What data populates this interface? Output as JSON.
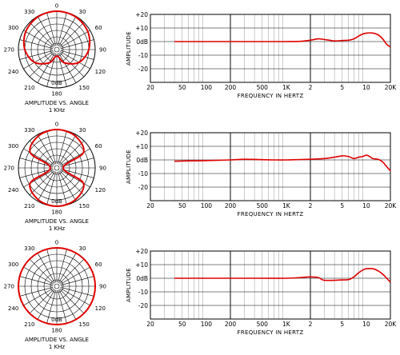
{
  "chart_data": [
    {
      "type": "polar",
      "panel": 1,
      "angle_labels": [
        "0",
        "30",
        "60",
        "90",
        "120",
        "150",
        "180",
        "210",
        "240",
        "270",
        "300",
        "330"
      ],
      "radial_label": "0dB",
      "caption_line1": "AMPLITUDE VS. ANGLE",
      "caption_line2": "1 KHz",
      "pattern": "cardioid",
      "response_db": {
        "0": 0,
        "30": -0.5,
        "60": -2,
        "90": -5,
        "120": -10,
        "150": -18,
        "180": -25,
        "210": -18,
        "240": -10,
        "270": -5,
        "300": -2,
        "330": -0.5
      }
    },
    {
      "type": "line",
      "panel": 1,
      "title": "",
      "xlabel": "FREQUENCY IN HERTZ",
      "ylabel": "AMPLITUDE",
      "x_scale": "log",
      "xlim": [
        20,
        20000
      ],
      "ylim": [
        -30,
        20
      ],
      "x_tick_labels": [
        "20",
        "50",
        "100",
        "200",
        "500",
        "1K",
        "2",
        "5",
        "10",
        "20K"
      ],
      "y_tick_labels": [
        "+20",
        "+10",
        "0dB",
        "-10",
        "-20"
      ],
      "series": [
        {
          "color": "#e00000",
          "x": [
            40,
            60,
            100,
            200,
            500,
            1000,
            1500,
            2000,
            2500,
            3000,
            4000,
            5000,
            6000,
            7000,
            8000,
            9000,
            10000,
            12000,
            14000,
            16000,
            18000,
            20000
          ],
          "y": [
            0,
            0,
            0,
            0,
            0,
            0,
            0.2,
            1,
            2,
            1.5,
            0.5,
            0.8,
            1,
            2,
            4,
            5.5,
            6.2,
            6.3,
            5,
            2,
            -2,
            -4
          ]
        }
      ]
    },
    {
      "type": "polar",
      "panel": 2,
      "angle_labels": [
        "0",
        "30",
        "60",
        "90",
        "120",
        "150",
        "180",
        "210",
        "240",
        "270",
        "300",
        "330"
      ],
      "radial_label": "0dB",
      "caption_line1": "AMPLITUDE VS. ANGLE",
      "caption_line2": "1 KHz",
      "pattern": "figure-8",
      "response_db": {
        "0": 0,
        "30": -1.2,
        "60": -6,
        "90": -25,
        "120": -6,
        "150": -1.2,
        "180": 0,
        "210": -1.2,
        "240": -6,
        "270": -25,
        "300": -6,
        "330": -1.2
      }
    },
    {
      "type": "line",
      "panel": 2,
      "title": "",
      "xlabel": "FREQUENCY IN HERTZ",
      "ylabel": "AMPLITUDE",
      "x_scale": "log",
      "xlim": [
        20,
        20000
      ],
      "ylim": [
        -30,
        20
      ],
      "x_tick_labels": [
        "20",
        "50",
        "100",
        "200",
        "500",
        "1K",
        "2",
        "5",
        "10",
        "20K"
      ],
      "y_tick_labels": [
        "+20",
        "+10",
        "0dB",
        "-10",
        "-20"
      ],
      "series": [
        {
          "color": "#e00000",
          "x": [
            40,
            60,
            100,
            200,
            300,
            500,
            700,
            1000,
            1500,
            2000,
            3000,
            4000,
            5000,
            6000,
            7000,
            8000,
            9000,
            10000,
            11000,
            12000,
            14000,
            16000,
            18000,
            20000
          ],
          "y": [
            -1,
            -0.7,
            -0.5,
            0,
            0.5,
            0.2,
            0,
            0,
            0.3,
            0.5,
            1,
            2,
            3,
            2.5,
            1,
            2,
            2.5,
            3.5,
            2.5,
            1,
            0.5,
            -1.5,
            -5,
            -8
          ]
        }
      ]
    },
    {
      "type": "polar",
      "panel": 3,
      "angle_labels": [
        "0",
        "30",
        "60",
        "90",
        "120",
        "150",
        "180",
        "210",
        "240",
        "270",
        "300",
        "330"
      ],
      "radial_label": "0dB",
      "caption_line1": "AMPLITUDE VS. ANGLE",
      "caption_line2": "1 KHz",
      "pattern": "omnidirectional",
      "response_db": {
        "0": 0,
        "30": 0,
        "60": 0,
        "90": 0,
        "120": 0,
        "150": 0,
        "180": 0,
        "210": 0,
        "240": 0,
        "270": 0,
        "300": 0,
        "330": 0
      }
    },
    {
      "type": "line",
      "panel": 3,
      "title": "",
      "xlabel": "FREQUENCY IN HERTZ",
      "ylabel": "AMPLITUDE",
      "x_scale": "log",
      "xlim": [
        20,
        20000
      ],
      "ylim": [
        -30,
        20
      ],
      "x_tick_labels": [
        "20",
        "50",
        "100",
        "200",
        "500",
        "1K",
        "2",
        "5",
        "10",
        "20K"
      ],
      "y_tick_labels": [
        "+20",
        "+10",
        "0dB",
        "-10",
        "-20"
      ],
      "series": [
        {
          "color": "#e00000",
          "x": [
            40,
            60,
            100,
            200,
            500,
            1000,
            1500,
            2000,
            2500,
            2800,
            3000,
            4000,
            5000,
            6000,
            7000,
            8000,
            9000,
            10000,
            12000,
            14000,
            16000,
            18000,
            20000
          ],
          "y": [
            0,
            0,
            0,
            0,
            0,
            0,
            0.5,
            1,
            0.5,
            -1,
            -1.5,
            -1.5,
            -1.2,
            -1,
            1,
            4,
            6,
            7,
            7,
            5.5,
            3,
            0,
            -3
          ]
        }
      ]
    }
  ]
}
